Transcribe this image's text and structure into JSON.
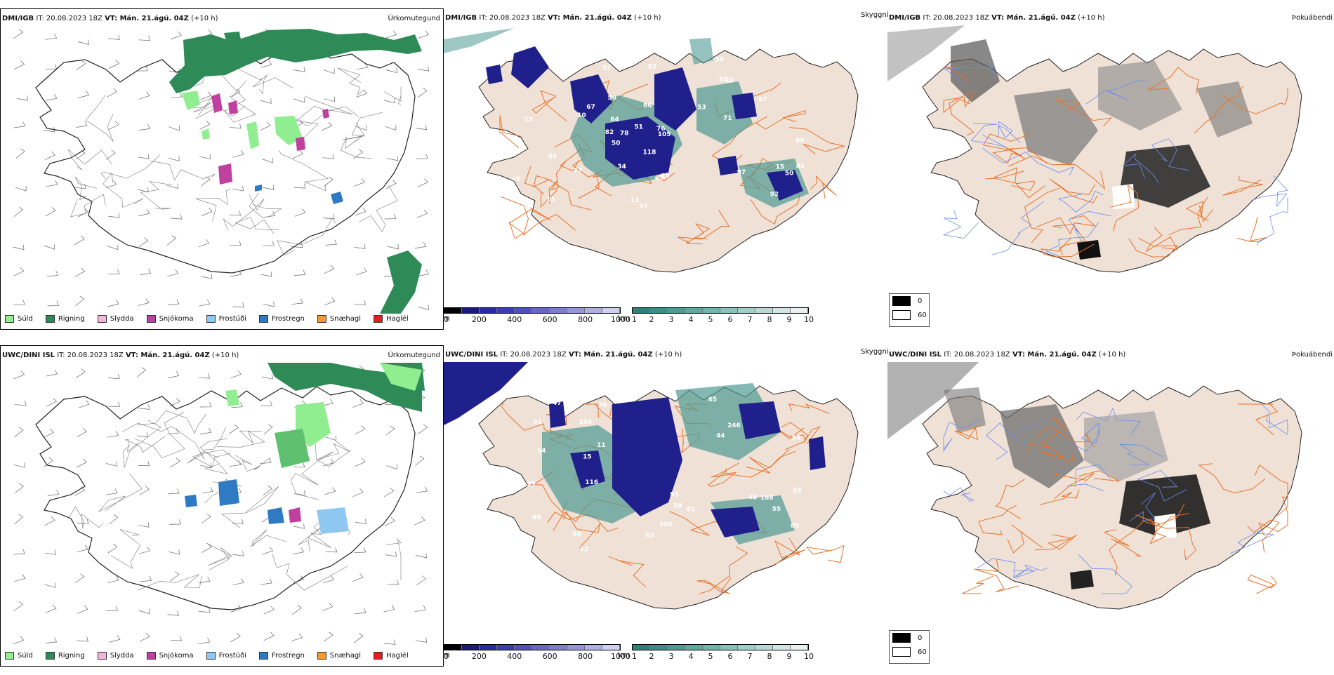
{
  "rows": [
    {
      "model_label": "DMI/IGB",
      "init_time": "IT: 20.08.2023 18Z",
      "valid_label": "VT: Mán. 21.ágú. 04Z",
      "lead": "(+10 h)",
      "precip_values": [
        "77",
        "97",
        "48",
        "10",
        "11",
        "67",
        "69",
        "67",
        "53",
        "50",
        "82",
        "97",
        "55",
        "50",
        "10",
        "38",
        "51",
        "50",
        "34",
        "11",
        "118",
        "52",
        "78",
        "92",
        "84",
        "105",
        "85",
        "57",
        "67",
        "12",
        "71",
        "43",
        "86",
        "15",
        "76",
        "15"
      ]
    },
    {
      "model_label": "UWC/DINI ISL",
      "init_time": "IT: 20.08.2023 18Z",
      "valid_label": "VT: Mán. 21.ágú. 04Z",
      "lead": "(+10 h)",
      "precip_values": [
        "116",
        "154",
        "89",
        "12",
        "86",
        "49",
        "55",
        "58",
        "51",
        "100",
        "48",
        "11",
        "63",
        "54",
        "59",
        "246",
        "47",
        "44",
        "65",
        "70",
        "58",
        "61",
        "55",
        "58",
        "188",
        "15"
      ]
    }
  ],
  "panel_titles": {
    "precip_type": "Úrkomutegund",
    "visibility": "Skyggni",
    "fog": "Þokuábendi"
  },
  "precip_legend": [
    {
      "label": "Súld",
      "color": "#90ee90"
    },
    {
      "label": "Rigning",
      "color": "#2e8b57"
    },
    {
      "label": "Slydda",
      "color": "#f4b6d8"
    },
    {
      "label": "Snjókoma",
      "color": "#c040a0"
    },
    {
      "label": "Frostúði",
      "color": "#8ec8f0"
    },
    {
      "label": "Frostregn",
      "color": "#2e7bc4"
    },
    {
      "label": "Snæhagl",
      "color": "#f29a2e"
    },
    {
      "label": "Haglél",
      "color": "#e02020"
    }
  ],
  "cloud_base_scale": {
    "unit": "m",
    "ticks": [
      "0",
      "200",
      "400",
      "600",
      "800",
      "1000"
    ],
    "colors": [
      "#000000",
      "#1a1a7a",
      "#2a2aa0",
      "#3c3cb4",
      "#5050bc",
      "#6868c4",
      "#7e7ecc",
      "#9696d6",
      "#b0b0e0",
      "#d0d0ee"
    ]
  },
  "visibility_scale": {
    "unit": "km",
    "ticks": [
      "1",
      "2",
      "3",
      "4",
      "5",
      "6",
      "7",
      "8",
      "9",
      "10"
    ],
    "colors": [
      "#2f7f7a",
      "#3e8c86",
      "#4f9a93",
      "#62a7a0",
      "#76b3ad",
      "#8cc0ba",
      "#a2cdc8",
      "#bad9d5",
      "#d2e6e3",
      "#eaf2f1"
    ]
  },
  "fog_legend": [
    {
      "label": "0",
      "color": "#000000"
    },
    {
      "label": "60",
      "color": "#ffffff"
    }
  ],
  "colors": {
    "land": "#efe1d6",
    "roads": "#e8732a",
    "rivers": "#6a8cf0",
    "coast": "#222222",
    "rain": "#2e8b57",
    "drizzle": "#90ee90",
    "lowcloud": "#20208c",
    "vis": "#4f9a93"
  }
}
